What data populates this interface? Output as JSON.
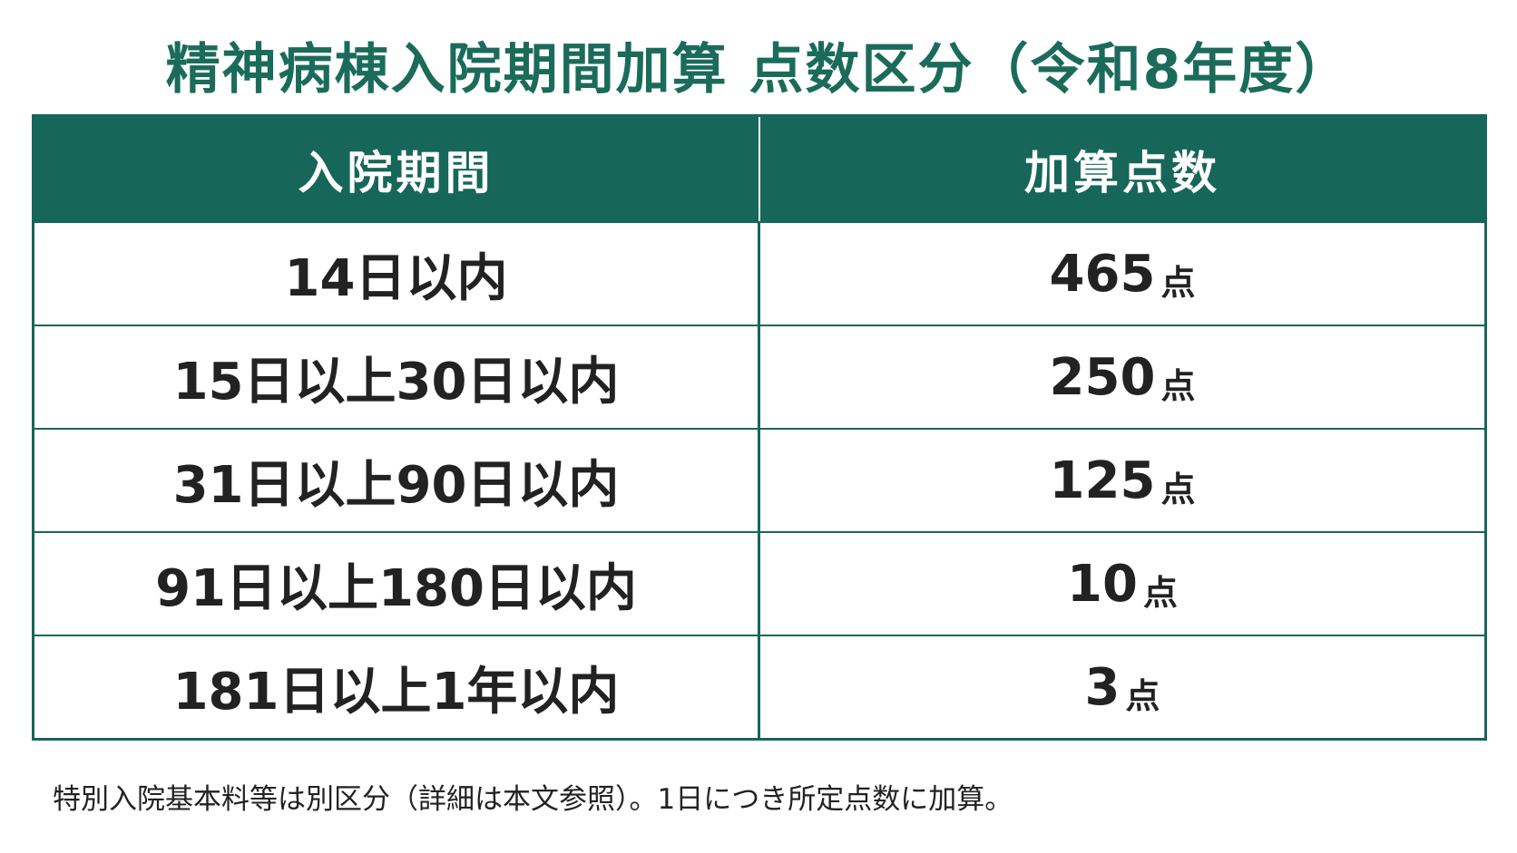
{
  "header": {
    "title": "精神病棟入院期間加算 点数区分（令和8年度）"
  },
  "table": {
    "columns": [
      "入院期間",
      "加算点数"
    ],
    "rows": [
      {
        "period": "14日以内",
        "points": 465,
        "unit": "点"
      },
      {
        "period": "15日以上30日以内",
        "points": 250,
        "unit": "点"
      },
      {
        "period": "31日以上90日以内",
        "points": 125,
        "unit": "点"
      },
      {
        "period": "91日以上180日以内",
        "points": 10,
        "unit": "点"
      },
      {
        "period": "181日以上1年以内",
        "points": 3,
        "unit": "点"
      }
    ]
  },
  "footnote": "特別入院基本料等は別区分（詳細は本文参照）。1日につき所定点数に加算。"
}
